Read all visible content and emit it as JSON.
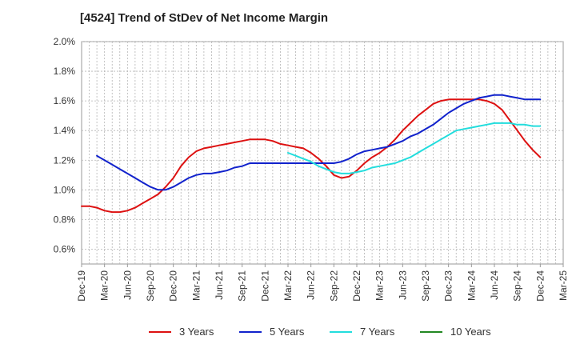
{
  "chart_data": {
    "type": "line",
    "title": "[4524]  Trend of StDev of Net Income Margin",
    "xlabel": "",
    "ylabel": "",
    "x_ticks": [
      "Dec-19",
      "Mar-20",
      "Jun-20",
      "Sep-20",
      "Dec-20",
      "Mar-21",
      "Jun-21",
      "Sep-21",
      "Dec-21",
      "Mar-22",
      "Jun-22",
      "Sep-22",
      "Dec-22",
      "Mar-23",
      "Jun-23",
      "Sep-23",
      "Dec-23",
      "Mar-24",
      "Jun-24",
      "Sep-24",
      "Dec-24",
      "Mar-25"
    ],
    "y_ticks": [
      "0.6%",
      "0.8%",
      "1.0%",
      "1.2%",
      "1.4%",
      "1.6%",
      "1.8%",
      "2.0%"
    ],
    "ylim": [
      0.5,
      2.0
    ],
    "grid": true,
    "legend_position": "bottom",
    "series": [
      {
        "name": "3 Years",
        "color": "#dd1111",
        "points": [
          [
            "Dec-19",
            0.89
          ],
          [
            "Jan-20",
            0.89
          ],
          [
            "Feb-20",
            0.88
          ],
          [
            "Mar-20",
            0.86
          ],
          [
            "Apr-20",
            0.85
          ],
          [
            "May-20",
            0.85
          ],
          [
            "Jun-20",
            0.86
          ],
          [
            "Jul-20",
            0.88
          ],
          [
            "Aug-20",
            0.91
          ],
          [
            "Sep-20",
            0.94
          ],
          [
            "Oct-20",
            0.97
          ],
          [
            "Nov-20",
            1.02
          ],
          [
            "Dec-20",
            1.08
          ],
          [
            "Jan-21",
            1.16
          ],
          [
            "Feb-21",
            1.22
          ],
          [
            "Mar-21",
            1.26
          ],
          [
            "Apr-21",
            1.28
          ],
          [
            "May-21",
            1.29
          ],
          [
            "Jun-21",
            1.3
          ],
          [
            "Jul-21",
            1.31
          ],
          [
            "Aug-21",
            1.32
          ],
          [
            "Sep-21",
            1.33
          ],
          [
            "Oct-21",
            1.34
          ],
          [
            "Nov-21",
            1.34
          ],
          [
            "Dec-21",
            1.34
          ],
          [
            "Jan-22",
            1.33
          ],
          [
            "Feb-22",
            1.31
          ],
          [
            "Mar-22",
            1.3
          ],
          [
            "Apr-22",
            1.29
          ],
          [
            "May-22",
            1.28
          ],
          [
            "Jun-22",
            1.25
          ],
          [
            "Jul-22",
            1.21
          ],
          [
            "Aug-22",
            1.16
          ],
          [
            "Sep-22",
            1.1
          ],
          [
            "Oct-22",
            1.08
          ],
          [
            "Nov-22",
            1.09
          ],
          [
            "Dec-22",
            1.13
          ],
          [
            "Jan-23",
            1.18
          ],
          [
            "Feb-23",
            1.22
          ],
          [
            "Mar-23",
            1.25
          ],
          [
            "Apr-23",
            1.29
          ],
          [
            "May-23",
            1.34
          ],
          [
            "Jun-23",
            1.4
          ],
          [
            "Jul-23",
            1.45
          ],
          [
            "Aug-23",
            1.5
          ],
          [
            "Sep-23",
            1.54
          ],
          [
            "Oct-23",
            1.58
          ],
          [
            "Nov-23",
            1.6
          ],
          [
            "Dec-23",
            1.61
          ],
          [
            "Jan-24",
            1.61
          ],
          [
            "Feb-24",
            1.61
          ],
          [
            "Mar-24",
            1.61
          ],
          [
            "Apr-24",
            1.61
          ],
          [
            "May-24",
            1.6
          ],
          [
            "Jun-24",
            1.58
          ],
          [
            "Jul-24",
            1.54
          ],
          [
            "Aug-24",
            1.47
          ],
          [
            "Sep-24",
            1.4
          ],
          [
            "Oct-24",
            1.33
          ],
          [
            "Nov-24",
            1.27
          ],
          [
            "Dec-24",
            1.22
          ]
        ]
      },
      {
        "name": "5 Years",
        "color": "#1122cc",
        "points": [
          [
            "Feb-20",
            1.23
          ],
          [
            "Mar-20",
            1.2
          ],
          [
            "Apr-20",
            1.17
          ],
          [
            "May-20",
            1.14
          ],
          [
            "Jun-20",
            1.11
          ],
          [
            "Jul-20",
            1.08
          ],
          [
            "Aug-20",
            1.05
          ],
          [
            "Sep-20",
            1.02
          ],
          [
            "Oct-20",
            1.0
          ],
          [
            "Nov-20",
            1.0
          ],
          [
            "Dec-20",
            1.02
          ],
          [
            "Jan-21",
            1.05
          ],
          [
            "Feb-21",
            1.08
          ],
          [
            "Mar-21",
            1.1
          ],
          [
            "Apr-21",
            1.11
          ],
          [
            "May-21",
            1.11
          ],
          [
            "Jun-21",
            1.12
          ],
          [
            "Jul-21",
            1.13
          ],
          [
            "Aug-21",
            1.15
          ],
          [
            "Sep-21",
            1.16
          ],
          [
            "Oct-21",
            1.18
          ],
          [
            "Nov-21",
            1.18
          ],
          [
            "Dec-21",
            1.18
          ],
          [
            "Jan-22",
            1.18
          ],
          [
            "Feb-22",
            1.18
          ],
          [
            "Mar-22",
            1.18
          ],
          [
            "Apr-22",
            1.18
          ],
          [
            "May-22",
            1.18
          ],
          [
            "Jun-22",
            1.18
          ],
          [
            "Jul-22",
            1.18
          ],
          [
            "Aug-22",
            1.18
          ],
          [
            "Sep-22",
            1.18
          ],
          [
            "Oct-22",
            1.19
          ],
          [
            "Nov-22",
            1.21
          ],
          [
            "Dec-22",
            1.24
          ],
          [
            "Jan-23",
            1.26
          ],
          [
            "Feb-23",
            1.27
          ],
          [
            "Mar-23",
            1.28
          ],
          [
            "Apr-23",
            1.29
          ],
          [
            "May-23",
            1.31
          ],
          [
            "Jun-23",
            1.33
          ],
          [
            "Jul-23",
            1.36
          ],
          [
            "Aug-23",
            1.38
          ],
          [
            "Sep-23",
            1.41
          ],
          [
            "Oct-23",
            1.44
          ],
          [
            "Nov-23",
            1.48
          ],
          [
            "Dec-23",
            1.52
          ],
          [
            "Jan-24",
            1.55
          ],
          [
            "Feb-24",
            1.58
          ],
          [
            "Mar-24",
            1.6
          ],
          [
            "Apr-24",
            1.62
          ],
          [
            "May-24",
            1.63
          ],
          [
            "Jun-24",
            1.64
          ],
          [
            "Jul-24",
            1.64
          ],
          [
            "Aug-24",
            1.63
          ],
          [
            "Sep-24",
            1.62
          ],
          [
            "Oct-24",
            1.61
          ],
          [
            "Nov-24",
            1.61
          ],
          [
            "Dec-24",
            1.61
          ]
        ]
      },
      {
        "name": "7 Years",
        "color": "#22dddd",
        "points": [
          [
            "Mar-22",
            1.25
          ],
          [
            "Apr-22",
            1.23
          ],
          [
            "May-22",
            1.21
          ],
          [
            "Jun-22",
            1.19
          ],
          [
            "Jul-22",
            1.16
          ],
          [
            "Aug-22",
            1.14
          ],
          [
            "Sep-22",
            1.12
          ],
          [
            "Oct-22",
            1.11
          ],
          [
            "Nov-22",
            1.11
          ],
          [
            "Dec-22",
            1.12
          ],
          [
            "Jan-23",
            1.13
          ],
          [
            "Feb-23",
            1.15
          ],
          [
            "Mar-23",
            1.16
          ],
          [
            "Apr-23",
            1.17
          ],
          [
            "May-23",
            1.18
          ],
          [
            "Jun-23",
            1.2
          ],
          [
            "Jul-23",
            1.22
          ],
          [
            "Aug-23",
            1.25
          ],
          [
            "Sep-23",
            1.28
          ],
          [
            "Oct-23",
            1.31
          ],
          [
            "Nov-23",
            1.34
          ],
          [
            "Dec-23",
            1.37
          ],
          [
            "Jan-24",
            1.4
          ],
          [
            "Feb-24",
            1.41
          ],
          [
            "Mar-24",
            1.42
          ],
          [
            "Apr-24",
            1.43
          ],
          [
            "May-24",
            1.44
          ],
          [
            "Jun-24",
            1.45
          ],
          [
            "Jul-24",
            1.45
          ],
          [
            "Aug-24",
            1.45
          ],
          [
            "Sep-24",
            1.44
          ],
          [
            "Oct-24",
            1.44
          ],
          [
            "Nov-24",
            1.43
          ],
          [
            "Dec-24",
            1.43
          ]
        ]
      },
      {
        "name": "10 Years",
        "color": "#228822",
        "points": []
      }
    ]
  }
}
